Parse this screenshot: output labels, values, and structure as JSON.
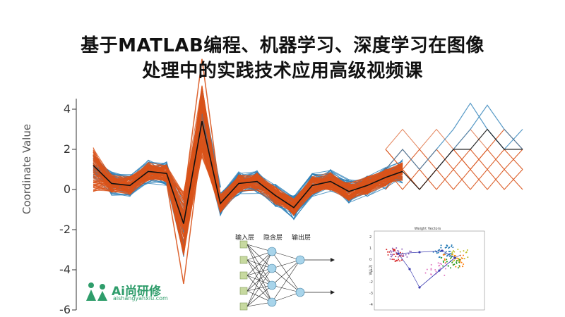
{
  "title": {
    "line1": "基于MATLAB编程、机器学习、深度学习在图像",
    "line2": "处理中的实践技术应用高级视频课"
  },
  "plot": {
    "ylabel": "Coordinate Value",
    "yticks": [
      "4",
      "2",
      "0",
      "-2",
      "-4",
      "-6"
    ],
    "colors": {
      "orange": "#d95319",
      "blue": "#2c7fb8",
      "black": "#111111"
    }
  },
  "network": {
    "input_label": "输入层",
    "hidden_label": "隐含层",
    "output_label": "输出层"
  },
  "scatter": {
    "title": "Weight Vectors",
    "ylabel": "W(i,2)",
    "yticks": [
      "2",
      "1",
      "0",
      "-1",
      "-2",
      "-3",
      "-4"
    ]
  },
  "logo": {
    "text": "Ai尚研修",
    "subtext": "aishangyanxiu.com",
    "color": "#2f9d6b"
  }
}
